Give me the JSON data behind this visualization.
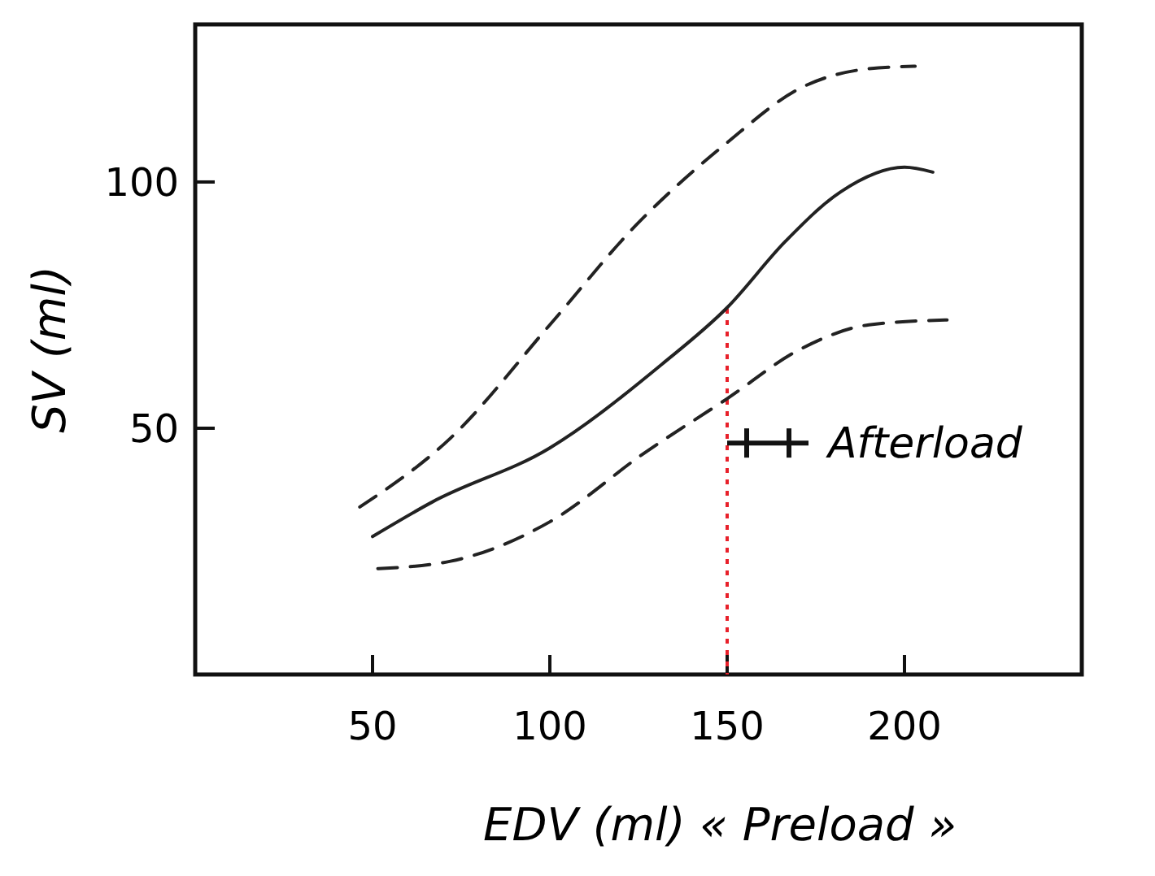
{
  "chart_data": {
    "type": "line",
    "xlabel": "EDV (ml) « Preload »",
    "ylabel": "SV (ml)",
    "xlim": [
      0,
      250
    ],
    "xticks": [
      50,
      100,
      150,
      200
    ],
    "ylim": [
      0,
      132
    ],
    "yticks": [
      50,
      100
    ],
    "grid": false,
    "marker": "none",
    "series": [
      {
        "color": "#222222",
        "line_style": "solid",
        "x": [
          50,
          66.8,
          100,
          131.6,
          150,
          166.5,
          182,
          200,
          208
        ],
        "values": [
          28,
          35,
          46,
          63,
          74.5,
          88,
          98,
          103,
          102
        ]
      },
      {
        "color": "#222222",
        "line_style": "dashed",
        "x": [
          46.4,
          72,
          100,
          124,
          150,
          170.5,
          190,
          203
        ],
        "values": [
          34,
          48,
          71,
          91,
          108,
          119,
          123,
          123.5
        ]
      },
      {
        "color": "#222222",
        "line_style": "dashed",
        "x": [
          51.5,
          72,
          100,
          126.7,
          150,
          170.5,
          190,
          212
        ],
        "values": [
          21.5,
          23,
          31,
          45,
          56,
          66,
          71,
          72
        ]
      }
    ],
    "ref_lines": [
      {
        "axis": "x",
        "value": 150,
        "color": "#e8202a",
        "line_style": "dotted"
      }
    ],
    "annotations": [
      {
        "text": "Afterload",
        "x": 150,
        "y": 47
      }
    ]
  }
}
